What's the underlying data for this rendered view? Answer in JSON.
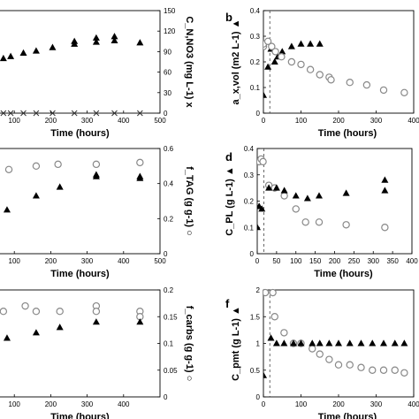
{
  "chart_data": [
    {
      "id": "a",
      "type": "scatter",
      "panel_label": "",
      "xlabel": "Time (hours)",
      "ylabel_right": "C_N,NO3 (mg L-1) x",
      "xlim": [
        0,
        500
      ],
      "ylim": [
        0,
        150
      ],
      "xticks": [
        "100",
        "200",
        "300",
        "400",
        "500"
      ],
      "yticks": [
        "0",
        "30",
        "60",
        "90",
        "120",
        "150"
      ],
      "series": [
        {
          "marker": "triangle",
          "x": [
            -10,
            25,
            70,
            90,
            125,
            160,
            205,
            265,
            325,
            375,
            445
          ],
          "y": [
            59,
            65,
            80,
            83,
            88,
            91,
            96,
            101,
            110,
            112,
            103
          ]
        },
        {
          "marker": "triangle",
          "x": [
            265,
            325,
            375
          ],
          "y": [
            105,
            104,
            106
          ]
        },
        {
          "marker": "x",
          "x": [
            0,
            25,
            70,
            90,
            125,
            160,
            205,
            265,
            325,
            375,
            445
          ],
          "y": [
            0,
            0,
            0,
            0,
            0,
            0,
            0,
            0,
            0,
            0,
            0
          ]
        }
      ]
    },
    {
      "id": "b",
      "type": "scatter",
      "panel_label": "b",
      "xlabel": "Time (hours)",
      "ylabel_left": "a_x,vol (m2 L-1) ▲",
      "xlim": [
        0,
        400
      ],
      "ylim": [
        0,
        0.4
      ],
      "xticks": [
        "0",
        "100",
        "200",
        "300",
        "400"
      ],
      "yticks": [
        "0",
        "0.1",
        "0.2",
        "0.3",
        "0.4"
      ],
      "dashed_x": 17,
      "series": [
        {
          "marker": "triangle",
          "x": [
            0,
            12,
            20,
            30,
            38,
            50,
            75,
            100,
            125,
            150
          ],
          "y": [
            0.07,
            0.18,
            0.25,
            0.2,
            0.22,
            0.24,
            0.26,
            0.27,
            0.27,
            0.27
          ]
        },
        {
          "marker": "circle",
          "x": [
            0,
            0,
            12,
            22,
            32,
            48,
            75,
            100,
            125,
            150,
            175,
            180,
            230,
            275,
            320,
            375
          ],
          "y": [
            0.26,
            0.27,
            0.28,
            0.26,
            0.24,
            0.22,
            0.2,
            0.19,
            0.17,
            0.15,
            0.14,
            0.13,
            0.12,
            0.11,
            0.09,
            0.08
          ]
        }
      ]
    },
    {
      "id": "c",
      "type": "scatter",
      "panel_label": "",
      "xlabel": "Time (hours)",
      "ylabel_right": "f_TAG (g g-1) ○",
      "xlim": [
        0,
        500
      ],
      "ylim": [
        0,
        0.6
      ],
      "xticks": [
        "100",
        "200",
        "300",
        "400",
        "500"
      ],
      "yticks": [
        "0",
        "0.2",
        "0.4",
        "0.6"
      ],
      "series": [
        {
          "marker": "circle",
          "x": [
            5,
            40,
            85,
            160,
            220,
            325,
            445
          ],
          "y": [
            0.48,
            0.42,
            0.48,
            0.5,
            0.51,
            0.51,
            0.52
          ]
        },
        {
          "marker": "triangle",
          "x": [
            10,
            40,
            80,
            160,
            225,
            325,
            325,
            445,
            445
          ],
          "y": [
            0.1,
            0.2,
            0.25,
            0.33,
            0.38,
            0.44,
            0.45,
            0.43,
            0.44
          ]
        }
      ]
    },
    {
      "id": "d",
      "type": "scatter",
      "panel_label": "d",
      "xlabel": "Time (hours)",
      "ylabel_left": "C_PL (g L-1) ▲",
      "xlim": [
        0,
        400
      ],
      "ylim": [
        0,
        0.4
      ],
      "xticks": [
        "0",
        "50",
        "100",
        "150",
        "200",
        "250",
        "300",
        "350",
        "400"
      ],
      "yticks": [
        "0",
        "0.1",
        "0.2",
        "0.3",
        "0.4"
      ],
      "dashed_x": 17,
      "series": [
        {
          "marker": "circle",
          "x": [
            2,
            5,
            10,
            15,
            30,
            45,
            70,
            100,
            125,
            160,
            230,
            330
          ],
          "y": [
            0.35,
            0.35,
            0.36,
            0.35,
            0.26,
            0.25,
            0.22,
            0.17,
            0.12,
            0.12,
            0.11,
            0.1
          ]
        },
        {
          "marker": "triangle",
          "x": [
            0,
            5,
            12,
            30,
            50,
            70,
            100,
            130,
            160,
            230,
            330,
            330
          ],
          "y": [
            0.1,
            0.18,
            0.17,
            0.25,
            0.25,
            0.24,
            0.22,
            0.21,
            0.22,
            0.23,
            0.28,
            0.24
          ]
        }
      ]
    },
    {
      "id": "e",
      "type": "scatter",
      "panel_label": "",
      "xlabel": "Time (hours)",
      "ylabel_right": "f_carbs (g g-1) ○",
      "xlim": [
        0,
        500
      ],
      "ylim": [
        0,
        0.2
      ],
      "xticks": [
        "100",
        "200",
        "300",
        "400"
      ],
      "yticks": [
        "0",
        "0.05",
        "0.1",
        "0.15",
        "0.2"
      ],
      "series": [
        {
          "marker": "circle",
          "x": [
            5,
            40,
            70,
            130,
            160,
            225,
            325,
            325,
            445,
            445
          ],
          "y": [
            0.17,
            0.16,
            0.16,
            0.17,
            0.16,
            0.16,
            0.17,
            0.16,
            0.16,
            0.15
          ]
        },
        {
          "marker": "triangle",
          "x": [
            10,
            40,
            80,
            160,
            225,
            325,
            445
          ],
          "y": [
            0.09,
            0.09,
            0.11,
            0.12,
            0.13,
            0.14,
            0.14
          ]
        }
      ]
    },
    {
      "id": "f",
      "type": "scatter",
      "panel_label": "f",
      "xlabel": "Time (hours)",
      "ylabel_left": "C_pmt (g L-1) ▲",
      "xlim": [
        0,
        400
      ],
      "ylim": [
        0,
        2
      ],
      "xticks": [
        "0",
        "100",
        "200",
        "300",
        "400"
      ],
      "yticks": [
        "0",
        "0.5",
        "1",
        "1.5",
        "2"
      ],
      "dashed_x": 17,
      "series": [
        {
          "marker": "circle",
          "x": [
            0,
            5,
            25,
            30,
            55,
            80,
            100,
            130,
            150,
            175,
            200,
            230,
            260,
            290,
            320,
            350,
            375
          ],
          "y": [
            1.95,
            1.95,
            1.95,
            1.5,
            1.2,
            1.0,
            1.0,
            0.9,
            0.8,
            0.7,
            0.6,
            0.6,
            0.55,
            0.5,
            0.5,
            0.5,
            0.45
          ]
        },
        {
          "marker": "triangle",
          "x": [
            0,
            20,
            35,
            55,
            80,
            100,
            130,
            150,
            175,
            200,
            230,
            260,
            290,
            320,
            350,
            375
          ],
          "y": [
            0.4,
            1.1,
            1.0,
            1.0,
            1.0,
            1.0,
            1.0,
            1.0,
            1.0,
            1.0,
            1.0,
            1.0,
            1.0,
            1.0,
            1.0,
            1.0
          ]
        }
      ]
    }
  ]
}
